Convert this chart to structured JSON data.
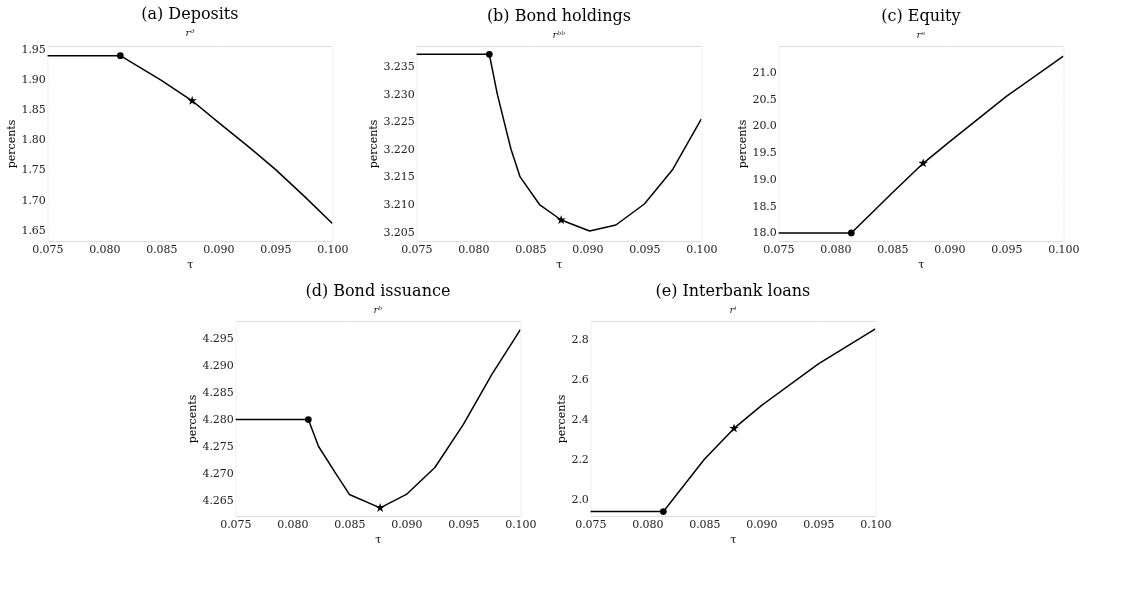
{
  "chart_data": [
    {
      "type": "line",
      "title": "(a) Deposits",
      "subtitle": "rᵈ",
      "xlabel": "τ",
      "ylabel": "percents",
      "xlim": [
        0.075,
        0.1
      ],
      "xticks": [
        0.075,
        {
          "value": 0.08,
          "label": "0.080"
        },
        0.085,
        {
          "value": 0.09,
          "label": "0.090"
        },
        0.095,
        {
          "value": 0.1,
          "label": "0.100"
        }
      ],
      "ylim": [
        1.632,
        1.956
      ],
      "yticks": [
        1.65,
        {
          "value": 1.7,
          "label": "1.70"
        },
        1.75,
        {
          "value": 1.8,
          "label": "1.80"
        },
        1.85,
        {
          "value": 1.9,
          "label": "1.90"
        },
        1.95
      ],
      "grid": true,
      "series": [
        {
          "color": "#000000",
          "x": [
            0.075,
            0.0814,
            0.085,
            0.0877,
            0.09,
            0.0925,
            0.095,
            0.0975,
            0.1
          ],
          "values": [
            1.94,
            1.94,
            1.899,
            1.865,
            1.829,
            1.791,
            1.751,
            1.707,
            1.661
          ]
        },
        {
          "type": "scatter",
          "marker": "circle",
          "color": "#000000",
          "x": [
            0.0814
          ],
          "values": [
            1.94
          ]
        },
        {
          "type": "scatter",
          "marker": "star",
          "color": "#000000",
          "x": [
            0.0877
          ],
          "values": [
            1.865
          ]
        }
      ]
    },
    {
      "type": "line",
      "title": "(b) Bond holdings",
      "subtitle": "rᵇᵇ",
      "xlabel": "τ",
      "ylabel": "percents",
      "xlim": [
        0.075,
        0.1
      ],
      "xticks": [
        0.075,
        {
          "value": 0.08,
          "label": "0.080"
        },
        0.085,
        {
          "value": 0.09,
          "label": "0.090"
        },
        0.095,
        {
          "value": 0.1,
          "label": "0.100"
        }
      ],
      "ylim": [
        3.2034,
        3.2387
      ],
      "yticks": [
        3.205,
        {
          "value": 3.21,
          "label": "3.210"
        },
        3.215,
        {
          "value": 3.22,
          "label": "3.220"
        },
        3.225,
        {
          "value": 3.23,
          "label": "3.230"
        },
        3.235
      ],
      "grid": true,
      "series": [
        {
          "color": "#000000",
          "x": [
            0.075,
            0.0814,
            0.0821,
            0.0833,
            0.0841,
            0.0858,
            0.0877,
            0.0902,
            0.0925,
            0.095,
            0.0975,
            0.1
          ],
          "values": [
            3.2372,
            3.2372,
            3.23,
            3.22,
            3.215,
            3.21,
            3.2072,
            3.2052,
            3.2063,
            3.2101,
            3.2164,
            3.2255
          ]
        },
        {
          "type": "scatter",
          "marker": "circle",
          "color": "#000000",
          "x": [
            0.0814
          ],
          "values": [
            3.2372
          ]
        },
        {
          "type": "scatter",
          "marker": "star",
          "color": "#000000",
          "x": [
            0.0877
          ],
          "values": [
            3.2072
          ]
        }
      ]
    },
    {
      "type": "line",
      "title": "(c) Equity",
      "subtitle": "rᵉ",
      "xlabel": "τ",
      "ylabel": "percents",
      "xlim": [
        0.075,
        0.1
      ],
      "xticks": [
        0.075,
        {
          "value": 0.08,
          "label": "0.080"
        },
        0.085,
        {
          "value": 0.09,
          "label": "0.090"
        },
        0.095,
        {
          "value": 0.1,
          "label": "0.100"
        }
      ],
      "ylim": [
        17.85,
        21.49
      ],
      "yticks": [
        {
          "value": 18,
          "label": "18.0"
        },
        18.5,
        {
          "value": 19,
          "label": "19.0"
        },
        19.5,
        {
          "value": 20,
          "label": "20.0"
        },
        20.5,
        {
          "value": 21,
          "label": "21.0"
        }
      ],
      "grid": true,
      "series": [
        {
          "color": "#000000",
          "x": [
            0.075,
            0.0814,
            0.085,
            0.0877,
            0.09,
            0.095,
            0.1
          ],
          "values": [
            18.0,
            18.0,
            18.75,
            19.3,
            19.7,
            20.55,
            21.3
          ]
        },
        {
          "type": "scatter",
          "marker": "circle",
          "color": "#000000",
          "x": [
            0.0814
          ],
          "values": [
            18.0
          ]
        },
        {
          "type": "scatter",
          "marker": "star",
          "color": "#000000",
          "x": [
            0.0877
          ],
          "values": [
            19.3
          ]
        }
      ]
    },
    {
      "type": "line",
      "title": "(d) Bond issuance",
      "subtitle": "rᵇ",
      "xlabel": "τ",
      "ylabel": "percents",
      "xlim": [
        0.075,
        0.1
      ],
      "xticks": [
        0.075,
        {
          "value": 0.08,
          "label": "0.080"
        },
        0.085,
        {
          "value": 0.09,
          "label": "0.090"
        },
        0.095,
        {
          "value": 0.1,
          "label": "0.100"
        }
      ],
      "ylim": [
        4.2621,
        4.2983
      ],
      "yticks": [
        4.265,
        {
          "value": 4.27,
          "label": "4.270"
        },
        4.275,
        {
          "value": 4.28,
          "label": "4.280"
        },
        4.285,
        {
          "value": 4.29,
          "label": "4.290"
        },
        4.295
      ],
      "grid": true,
      "series": [
        {
          "color": "#000000",
          "x": [
            0.075,
            0.0814,
            0.0823,
            0.0838,
            0.085,
            0.0877,
            0.09,
            0.0925,
            0.095,
            0.0975,
            0.1
          ],
          "values": [
            4.28,
            4.28,
            4.275,
            4.27,
            4.2661,
            4.2636,
            4.2661,
            4.2711,
            4.2791,
            4.2884,
            4.2967
          ]
        },
        {
          "type": "scatter",
          "marker": "circle",
          "color": "#000000",
          "x": [
            0.0814
          ],
          "values": [
            4.28
          ]
        },
        {
          "type": "scatter",
          "marker": "star",
          "color": "#000000",
          "x": [
            0.0877
          ],
          "values": [
            4.2636
          ]
        }
      ]
    },
    {
      "type": "line",
      "title": "(e) Interbank loans",
      "subtitle": "rⁱ",
      "xlabel": "τ",
      "ylabel": "percents",
      "xlim": [
        0.075,
        0.1
      ],
      "xticks": [
        0.075,
        {
          "value": 0.08,
          "label": "0.080"
        },
        0.085,
        {
          "value": 0.09,
          "label": "0.090"
        },
        0.095,
        {
          "value": 0.1,
          "label": "0.100"
        }
      ],
      "ylim": [
        1.915,
        2.895
      ],
      "yticks": [
        {
          "value": 2,
          "label": "2.0"
        },
        2.2,
        2.4,
        2.6,
        2.8
      ],
      "grid": true,
      "series": [
        {
          "color": "#000000",
          "x": [
            0.075,
            0.0814,
            0.085,
            0.0876,
            0.09,
            0.095,
            0.1
          ],
          "values": [
            1.937,
            1.937,
            2.2,
            2.355,
            2.47,
            2.68,
            2.855
          ]
        },
        {
          "type": "scatter",
          "marker": "circle",
          "color": "#000000",
          "x": [
            0.0814
          ],
          "values": [
            1.937
          ]
        },
        {
          "type": "scatter",
          "marker": "star",
          "color": "#000000",
          "x": [
            0.0876
          ],
          "values": [
            2.355
          ]
        }
      ]
    }
  ]
}
